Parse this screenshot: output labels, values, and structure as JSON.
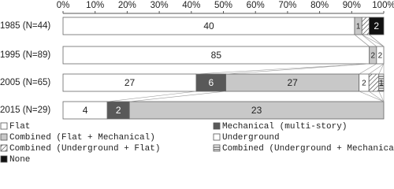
{
  "chart_data": {
    "type": "bar",
    "orientation": "horizontal",
    "stacked": "percent",
    "categories": [
      "1985 (N=44)",
      "1995 (N=89)",
      "2005 (N=65)",
      "2015 (N=29)"
    ],
    "series": [
      {
        "name": "Flat",
        "color": "#ffffff",
        "pattern": "solid",
        "values": [
          40,
          85,
          27,
          4
        ],
        "value_labels": [
          "40",
          "85",
          "27",
          "4"
        ]
      },
      {
        "name": "Mechanical (multi-story)",
        "color": "#595959",
        "pattern": "solid",
        "values": [
          0,
          0,
          6,
          2
        ],
        "value_labels": [
          null,
          null,
          "6",
          "2"
        ]
      },
      {
        "name": "Combined (Flat + Mechanical)",
        "color": "#c8c8c8",
        "pattern": "solid",
        "values": [
          1,
          2,
          27,
          23
        ],
        "value_labels": [
          "1",
          "2",
          "27",
          "23"
        ]
      },
      {
        "name": "Underground",
        "color": "#ffffff",
        "pattern": "solid",
        "values": [
          0,
          2,
          2,
          0
        ],
        "value_labels": [
          null,
          "2",
          "2",
          null
        ]
      },
      {
        "name": "Combined (Underground + Flat)",
        "color": "#ffffff",
        "pattern": "diagonal",
        "values": [
          1,
          0,
          2,
          0
        ],
        "value_labels": [
          null,
          null,
          null,
          null
        ]
      },
      {
        "name": "Combined (Underground + Mechanical)",
        "color": "#ffffff",
        "pattern": "horizontal",
        "values": [
          0,
          0,
          1,
          0
        ],
        "value_labels": [
          null,
          null,
          "1",
          null
        ]
      },
      {
        "name": "None",
        "color": "#111111",
        "pattern": "solid",
        "values": [
          2,
          0,
          0,
          0
        ],
        "value_labels": [
          "2",
          null,
          null,
          null
        ]
      }
    ],
    "xlim": [
      0,
      100
    ],
    "xticks": [
      {
        "value": 0,
        "label": "0%"
      },
      {
        "value": 10,
        "label": "10%"
      },
      {
        "value": 20,
        "label": "20%"
      },
      {
        "value": 30,
        "label": "30%"
      },
      {
        "value": 40,
        "label": "40%"
      },
      {
        "value": 50,
        "label": "50%"
      },
      {
        "value": 60,
        "label": "60%"
      },
      {
        "value": 70,
        "label": "70%"
      },
      {
        "value": 80,
        "label": "80%"
      },
      {
        "value": 90,
        "label": "90%"
      },
      {
        "value": 100,
        "label": "100%"
      }
    ],
    "grid": false,
    "legend": "bottom"
  }
}
